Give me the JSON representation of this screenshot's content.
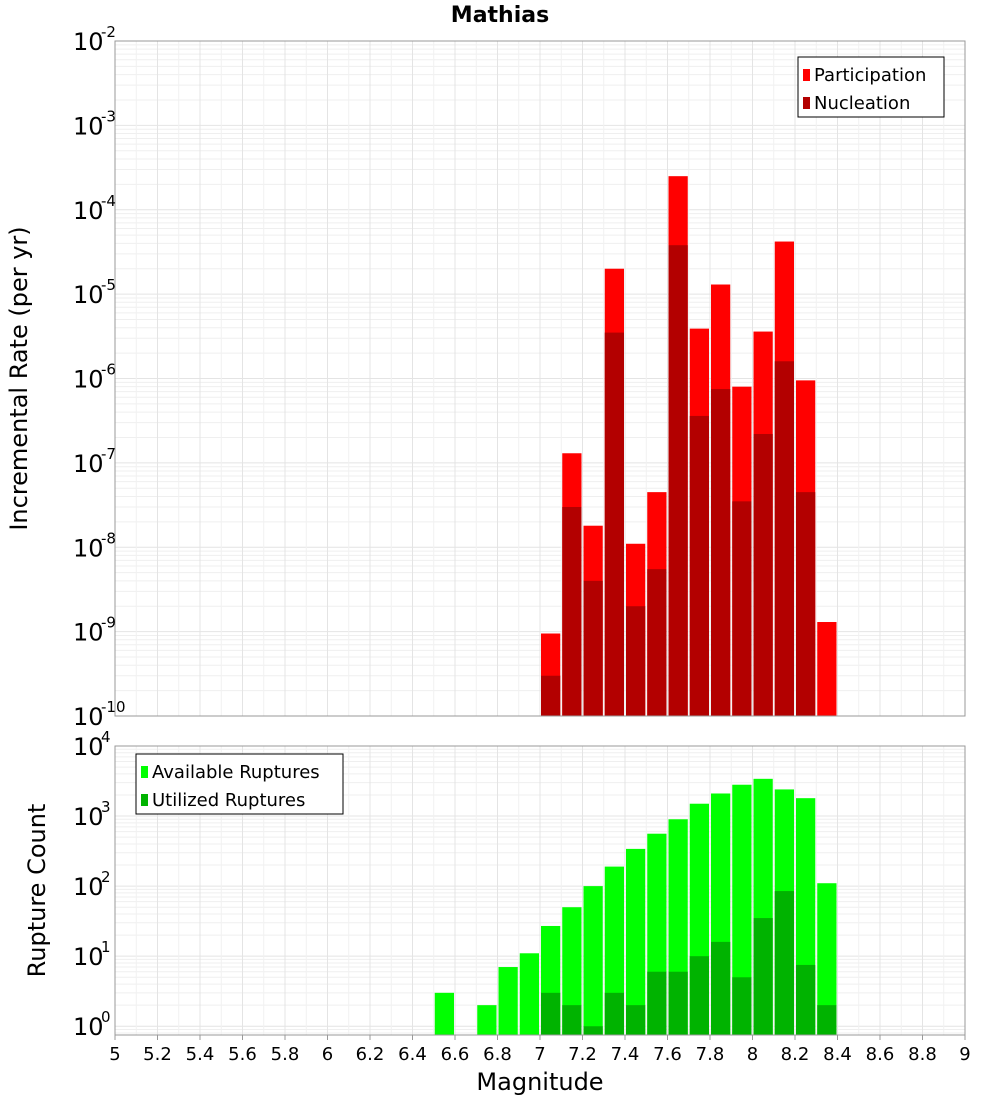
{
  "chart_data": [
    {
      "type": "bar",
      "title": "Mathias",
      "xlabel": "",
      "ylabel": "Incremental Rate (per yr)",
      "yscale": "log",
      "ylim": [
        1e-10,
        0.01
      ],
      "y_tick_exponents": [
        -10,
        -9,
        -8,
        -7,
        -6,
        -5,
        -4,
        -3,
        -2
      ],
      "xlim": [
        5,
        9
      ],
      "bin_width": 0.1,
      "grid": true,
      "legend_position": "top-right",
      "x": [
        7.05,
        7.15,
        7.25,
        7.35,
        7.45,
        7.55,
        7.65,
        7.75,
        7.85,
        7.95,
        8.05,
        8.15,
        8.25,
        8.35
      ],
      "series": [
        {
          "name": "Participation",
          "color": "#ff0000",
          "values": [
            9.5e-10,
            1.3e-07,
            1.8e-08,
            2e-05,
            1.1e-08,
            4.5e-08,
            0.00025,
            3.9e-06,
            1.3e-05,
            8e-07,
            3.6e-06,
            4.2e-05,
            9.5e-07,
            1.3e-09
          ]
        },
        {
          "name": "Nucleation",
          "color": "#b30000",
          "values": [
            3e-10,
            3e-08,
            4e-09,
            3.5e-06,
            2e-09,
            5.5e-09,
            3.8e-05,
            3.6e-07,
            7.5e-07,
            3.5e-08,
            2.2e-07,
            1.6e-06,
            4.5e-08,
            null
          ]
        }
      ]
    },
    {
      "type": "bar",
      "xlabel": "Magnitude",
      "ylabel": "Rupture Count",
      "yscale": "log",
      "ylim": [
        0.75,
        10000
      ],
      "y_tick_exponents": [
        0,
        1,
        2,
        3,
        4
      ],
      "xlim": [
        5,
        9
      ],
      "x_ticks": [
        "5",
        "5.2",
        "5.4",
        "5.6",
        "5.8",
        "6",
        "6.2",
        "6.4",
        "6.6",
        "6.8",
        "7",
        "7.2",
        "7.4",
        "7.6",
        "7.8",
        "8",
        "8.2",
        "8.4",
        "8.6",
        "8.8",
        "9"
      ],
      "bin_width": 0.1,
      "grid": true,
      "legend_position": "top-left",
      "x": [
        6.55,
        6.75,
        6.85,
        6.95,
        7.05,
        7.15,
        7.25,
        7.35,
        7.45,
        7.55,
        7.65,
        7.75,
        7.85,
        7.95,
        8.05,
        8.15,
        8.25,
        8.35
      ],
      "series": [
        {
          "name": "Available Ruptures",
          "color": "#00ff00",
          "values": [
            3,
            2,
            7,
            11,
            27,
            50,
            100,
            190,
            340,
            560,
            900,
            1500,
            2100,
            2800,
            3400,
            2400,
            1800,
            110
          ]
        },
        {
          "name": "Utilized Ruptures",
          "color": "#00b300",
          "values": [
            null,
            null,
            null,
            null,
            3,
            2,
            1,
            3,
            2,
            6,
            6,
            10,
            16,
            5,
            35,
            85,
            7.5,
            2
          ]
        }
      ]
    }
  ]
}
